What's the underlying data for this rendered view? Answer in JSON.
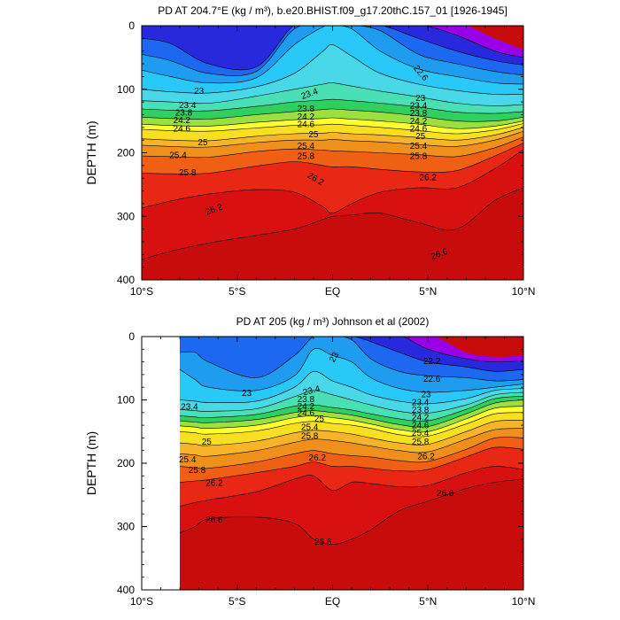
{
  "chart_data": [
    {
      "type": "contour",
      "title": "PD AT 204.7°E (kg / m³), b.e20.BHIST.f09_g17.20thC.157_01 [1926-1945]",
      "ylabel": "DEPTH (m)",
      "x_ticks": [
        "10°S",
        "5°S",
        "EQ",
        "5°N",
        "10°N"
      ],
      "x_tick_values": [
        -10,
        -5,
        0,
        5,
        10
      ],
      "y_ticks": [
        "0",
        "100",
        "200",
        "300",
        "400"
      ],
      "y_tick_values": [
        0,
        100,
        200,
        300,
        400
      ],
      "xlim": [
        -10,
        10
      ],
      "ylim": [
        400,
        0
      ],
      "data_xlim": [
        -10,
        10
      ],
      "colors": [
        "#9800e8",
        "#2828dc",
        "#1c68f0",
        "#1e9cf0",
        "#28c8f8",
        "#48d8e8",
        "#48e0b4",
        "#30d060",
        "#9ce040",
        "#ffff30",
        "#f8e020",
        "#f8b428",
        "#f0901c",
        "#f06014",
        "#e82814",
        "#d81010",
        "#c80c0c"
      ],
      "level_edges": [
        22.2,
        22.4,
        22.6,
        22.8,
        23.0,
        23.2,
        23.4,
        23.6,
        23.8,
        24.0,
        24.2,
        24.6,
        25.0,
        25.4,
        25.8,
        26.2,
        26.6
      ],
      "profile_columns": [
        {
          "x": -10,
          "depths": [
            -5,
            -2,
            20,
            45,
            70,
            100,
            118,
            131,
            144,
            155,
            163,
            178,
            188,
            205,
            232,
            287,
            368
          ]
        },
        {
          "x": -8.5,
          "depths": [
            -5,
            -2,
            28,
            55,
            80,
            104,
            120,
            133,
            146,
            157,
            165,
            180,
            190,
            206,
            233,
            276,
            355
          ]
        },
        {
          "x": -6.5,
          "depths": [
            -5,
            -2,
            60,
            75,
            90,
            106,
            122,
            134,
            147,
            158,
            166,
            181,
            191,
            207,
            232,
            265,
            342
          ]
        },
        {
          "x": -4,
          "depths": [
            -5,
            -2,
            65,
            72,
            82,
            96,
            111,
            127,
            140,
            152,
            161,
            174,
            184,
            198,
            221,
            258,
            330
          ]
        },
        {
          "x": -2,
          "depths": [
            -5,
            -2,
            -1,
            5,
            30,
            75,
            100,
            120,
            135,
            148,
            157,
            170,
            180,
            194,
            214,
            262,
            320
          ]
        },
        {
          "x": -0.5,
          "depths": [
            -5,
            -2,
            -1,
            -1,
            2,
            40,
            92,
            117,
            132,
            146,
            156,
            169,
            180,
            196,
            220,
            285,
            305
          ]
        },
        {
          "x": 0,
          "depths": [
            -5,
            -2,
            -1,
            -1,
            0,
            30,
            90,
            116,
            131,
            145,
            155,
            168,
            179,
            197,
            222,
            295,
            300
          ]
        },
        {
          "x": 1,
          "depths": [
            -5,
            -2,
            -1,
            -1,
            5,
            48,
            95,
            118,
            133,
            147,
            157,
            170,
            181,
            198,
            222,
            280,
            298
          ]
        },
        {
          "x": 2.5,
          "depths": [
            -5,
            -2,
            -1,
            8,
            40,
            75,
            103,
            122,
            136,
            150,
            160,
            172,
            183,
            200,
            226,
            262,
            295
          ]
        },
        {
          "x": 4.5,
          "depths": [
            -5,
            -2,
            20,
            45,
            68,
            92,
            112,
            128,
            142,
            155,
            165,
            176,
            187,
            203,
            230,
            255,
            310
          ]
        },
        {
          "x": 6.5,
          "depths": [
            -5,
            15,
            40,
            60,
            80,
            102,
            122,
            136,
            150,
            162,
            170,
            180,
            190,
            206,
            228,
            255,
            320
          ]
        },
        {
          "x": 8.5,
          "depths": [
            20,
            40,
            55,
            72,
            90,
            108,
            126,
            138,
            150,
            158,
            164,
            172,
            180,
            192,
            205,
            225,
            275
          ]
        },
        {
          "x": 10,
          "depths": [
            38,
            50,
            62,
            78,
            92,
            108,
            124,
            135,
            144,
            150,
            154,
            160,
            166,
            175,
            185,
            195,
            255
          ]
        }
      ],
      "labels": [
        {
          "text": "22.6",
          "x": 4.6,
          "depth": 75,
          "angle": 50
        },
        {
          "text": "23",
          "x": -7.0,
          "depth": 104,
          "angle": 0
        },
        {
          "text": "23",
          "x": 4.6,
          "depth": 115,
          "angle": 0
        },
        {
          "text": "23.4",
          "x": -1.2,
          "depth": 108,
          "angle": -20
        },
        {
          "text": "23.4",
          "x": -7.6,
          "depth": 126,
          "angle": 0
        },
        {
          "text": "23.4",
          "x": 4.5,
          "depth": 127,
          "angle": 0
        },
        {
          "text": "23.8",
          "x": -1.4,
          "depth": 132,
          "angle": 0
        },
        {
          "text": "23.8",
          "x": -7.8,
          "depth": 138,
          "angle": 0
        },
        {
          "text": "23.8",
          "x": 4.5,
          "depth": 139,
          "angle": 0
        },
        {
          "text": "24.2",
          "x": -1.4,
          "depth": 144,
          "angle": 0
        },
        {
          "text": "24.2",
          "x": -7.9,
          "depth": 150,
          "angle": 0
        },
        {
          "text": "24.2",
          "x": 4.5,
          "depth": 151,
          "angle": 0
        },
        {
          "text": "24.6",
          "x": -1.4,
          "depth": 156,
          "angle": 0
        },
        {
          "text": "24.6",
          "x": -7.9,
          "depth": 163,
          "angle": 0
        },
        {
          "text": "24.6",
          "x": 4.5,
          "depth": 163,
          "angle": 0
        },
        {
          "text": "25",
          "x": -6.8,
          "depth": 185,
          "angle": 0
        },
        {
          "text": "25",
          "x": -1.0,
          "depth": 172,
          "angle": 0
        },
        {
          "text": "25",
          "x": 4.6,
          "depth": 175,
          "angle": 0
        },
        {
          "text": "25.4",
          "x": -1.4,
          "depth": 190,
          "angle": 0
        },
        {
          "text": "25.4",
          "x": -8.1,
          "depth": 205,
          "angle": 0
        },
        {
          "text": "25.4",
          "x": 4.5,
          "depth": 190,
          "angle": 0
        },
        {
          "text": "25.8",
          "x": -1.4,
          "depth": 206,
          "angle": 0
        },
        {
          "text": "25.8",
          "x": -7.6,
          "depth": 232,
          "angle": 0
        },
        {
          "text": "25.8",
          "x": 4.5,
          "depth": 206,
          "angle": 0
        },
        {
          "text": "26.2",
          "x": -0.9,
          "depth": 242,
          "angle": 30
        },
        {
          "text": "26.2",
          "x": -6.2,
          "depth": 290,
          "angle": -20
        },
        {
          "text": "26.2",
          "x": 5.0,
          "depth": 240,
          "angle": 0
        },
        {
          "text": "26.6",
          "x": 5.6,
          "depth": 360,
          "angle": -20
        }
      ]
    },
    {
      "type": "contour",
      "title": "PD AT 205 (kg / m³) Johnson et al (2002)",
      "ylabel": "DEPTH (m)",
      "x_ticks": [
        "10°S",
        "5°S",
        "EQ",
        "5°N",
        "10°N"
      ],
      "x_tick_values": [
        -10,
        -5,
        0,
        5,
        10
      ],
      "y_ticks": [
        "0",
        "100",
        "200",
        "300",
        "400"
      ],
      "y_tick_values": [
        0,
        100,
        200,
        300,
        400
      ],
      "xlim": [
        -10,
        10
      ],
      "ylim": [
        400,
        0
      ],
      "data_xlim": [
        -8,
        10
      ],
      "colors": [
        "#9800e8",
        "#2828dc",
        "#1c68f0",
        "#1e9cf0",
        "#28c8f8",
        "#48d8e8",
        "#48e0b4",
        "#30d060",
        "#9ce040",
        "#ffff30",
        "#f8e020",
        "#f8b428",
        "#f0901c",
        "#f06014",
        "#e82814",
        "#d81010",
        "#c80c0c"
      ],
      "level_edges": [
        22.2,
        22.4,
        22.6,
        22.8,
        23.0,
        23.2,
        23.4,
        23.6,
        23.8,
        24.0,
        24.2,
        24.6,
        25.0,
        25.4,
        25.8,
        26.2,
        26.6
      ],
      "profile_columns": [
        {
          "x": -8,
          "depths": [
            -5,
            -2,
            -1,
            25,
            52,
            100,
            115,
            125,
            133,
            141,
            150,
            168,
            185,
            205,
            230,
            268,
            310
          ]
        },
        {
          "x": -7.2,
          "depths": [
            -5,
            -2,
            -1,
            25,
            68,
            102,
            117,
            127,
            135,
            143,
            152,
            170,
            187,
            207,
            228,
            262,
            300
          ]
        },
        {
          "x": -6.5,
          "depths": [
            -5,
            -2,
            -1,
            40,
            80,
            104,
            118,
            128,
            136,
            145,
            154,
            172,
            189,
            208,
            226,
            258,
            288
          ]
        },
        {
          "x": -4,
          "depths": [
            -5,
            -2,
            -1,
            65,
            85,
            102,
            114,
            123,
            131,
            140,
            149,
            165,
            180,
            198,
            215,
            245,
            285
          ]
        },
        {
          "x": -2,
          "depths": [
            -5,
            -2,
            -1,
            30,
            62,
            80,
            95,
            110,
            120,
            128,
            137,
            152,
            167,
            185,
            205,
            225,
            295
          ]
        },
        {
          "x": -1,
          "depths": [
            -5,
            -2,
            -1,
            0,
            20,
            55,
            85,
            108,
            117,
            125,
            134,
            148,
            162,
            180,
            198,
            220,
            320
          ]
        },
        {
          "x": 0,
          "depths": [
            -5,
            -2,
            -1,
            -1,
            30,
            70,
            92,
            112,
            120,
            128,
            137,
            150,
            164,
            185,
            205,
            243,
            328
          ]
        },
        {
          "x": 1,
          "depths": [
            -5,
            -2,
            -1,
            5,
            40,
            80,
            100,
            116,
            124,
            132,
            140,
            154,
            168,
            188,
            205,
            230,
            320
          ]
        },
        {
          "x": 2,
          "depths": [
            -5,
            -2,
            8,
            35,
            65,
            92,
            108,
            122,
            130,
            138,
            145,
            160,
            173,
            190,
            208,
            232,
            305
          ]
        },
        {
          "x": 3.5,
          "depths": [
            -5,
            -2,
            25,
            55,
            82,
            102,
            118,
            130,
            139,
            147,
            155,
            168,
            180,
            196,
            212,
            237,
            275
          ]
        },
        {
          "x": 5,
          "depths": [
            -5,
            20,
            40,
            62,
            88,
            106,
            121,
            133,
            142,
            150,
            157,
            170,
            182,
            197,
            210,
            235,
            260
          ]
        },
        {
          "x": 7,
          "depths": [
            25,
            35,
            48,
            65,
            85,
            98,
            108,
            115,
            122,
            130,
            138,
            150,
            162,
            178,
            190,
            215,
            240
          ]
        },
        {
          "x": 8.5,
          "depths": [
            32,
            40,
            55,
            70,
            80,
            85,
            92,
            98,
            105,
            113,
            122,
            134,
            147,
            160,
            175,
            205,
            230
          ]
        },
        {
          "x": 10,
          "depths": [
            30,
            38,
            52,
            68,
            75,
            82,
            88,
            94,
            100,
            110,
            120,
            132,
            145,
            160,
            178,
            210,
            225
          ]
        }
      ],
      "labels": [
        {
          "text": "22.2",
          "x": 5.2,
          "depth": 40,
          "angle": 0
        },
        {
          "text": "22.6",
          "x": 5.2,
          "depth": 68,
          "angle": 0
        },
        {
          "text": "23",
          "x": -4.5,
          "depth": 90,
          "angle": 0
        },
        {
          "text": "23",
          "x": 0.1,
          "depth": 33,
          "angle": -60
        },
        {
          "text": "23",
          "x": 4.9,
          "depth": 92,
          "angle": 0
        },
        {
          "text": "23.4",
          "x": -1.1,
          "depth": 86,
          "angle": -15
        },
        {
          "text": "23.4",
          "x": -7.5,
          "depth": 112,
          "angle": 0
        },
        {
          "text": "23.4",
          "x": 4.6,
          "depth": 105,
          "angle": 0
        },
        {
          "text": "23.8",
          "x": -1.4,
          "depth": 100,
          "angle": 0
        },
        {
          "text": "23.8",
          "x": 4.6,
          "depth": 117,
          "angle": 0
        },
        {
          "text": "24.2",
          "x": -1.4,
          "depth": 111,
          "angle": 0
        },
        {
          "text": "24.2",
          "x": 4.6,
          "depth": 129,
          "angle": 0
        },
        {
          "text": "24.6",
          "x": -1.4,
          "depth": 122,
          "angle": 0
        },
        {
          "text": "24.6",
          "x": 4.6,
          "depth": 141,
          "angle": 0
        },
        {
          "text": "25",
          "x": -0.7,
          "depth": 131,
          "angle": 0
        },
        {
          "text": "25",
          "x": -6.6,
          "depth": 167,
          "angle": 0
        },
        {
          "text": "25.4",
          "x": -1.2,
          "depth": 144,
          "angle": 0
        },
        {
          "text": "25.4",
          "x": -7.6,
          "depth": 195,
          "angle": 0
        },
        {
          "text": "25.4",
          "x": 4.6,
          "depth": 153,
          "angle": 0
        },
        {
          "text": "25.8",
          "x": -1.2,
          "depth": 158,
          "angle": 0
        },
        {
          "text": "25.8",
          "x": -7.1,
          "depth": 212,
          "angle": 0
        },
        {
          "text": "25.8",
          "x": 4.6,
          "depth": 167,
          "angle": 0
        },
        {
          "text": "26.2",
          "x": -0.8,
          "depth": 192,
          "angle": 0
        },
        {
          "text": "26.2",
          "x": -6.2,
          "depth": 232,
          "angle": 0
        },
        {
          "text": "26.2",
          "x": 4.9,
          "depth": 190,
          "angle": 0
        },
        {
          "text": "26.6",
          "x": -6.2,
          "depth": 290,
          "angle": 0
        },
        {
          "text": "26.6",
          "x": -0.5,
          "depth": 325,
          "angle": 0
        },
        {
          "text": "26.6",
          "x": 5.9,
          "depth": 248,
          "angle": 0
        }
      ]
    }
  ]
}
